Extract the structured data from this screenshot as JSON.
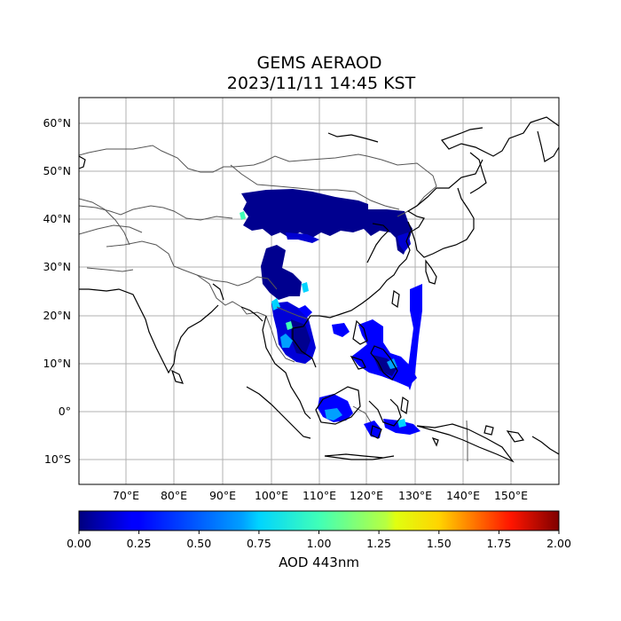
{
  "title_line1": "GEMS AERAOD",
  "title_line2": "2023/11/11 14:45 KST",
  "map": {
    "lon_range": [
      60,
      160
    ],
    "lat_range": [
      -15,
      65
    ],
    "lon_ticks": [
      "70°E",
      "80°E",
      "90°E",
      "100°E",
      "110°E",
      "120°E",
      "130°E",
      "140°E",
      "150°E"
    ],
    "lat_ticks": [
      "60°N",
      "50°N",
      "40°N",
      "30°N",
      "20°N",
      "10°N",
      "0°",
      "10°S"
    ],
    "grid": true,
    "coastline_color": "#000000",
    "border_color": "#555555"
  },
  "colorbar": {
    "label": "AOD 443nm",
    "range": [
      0,
      2
    ],
    "tick_labels": [
      "0.00",
      "0.25",
      "0.50",
      "0.75",
      "1.00",
      "1.25",
      "1.50",
      "1.75",
      "2.00"
    ],
    "colormap": "jet"
  }
}
